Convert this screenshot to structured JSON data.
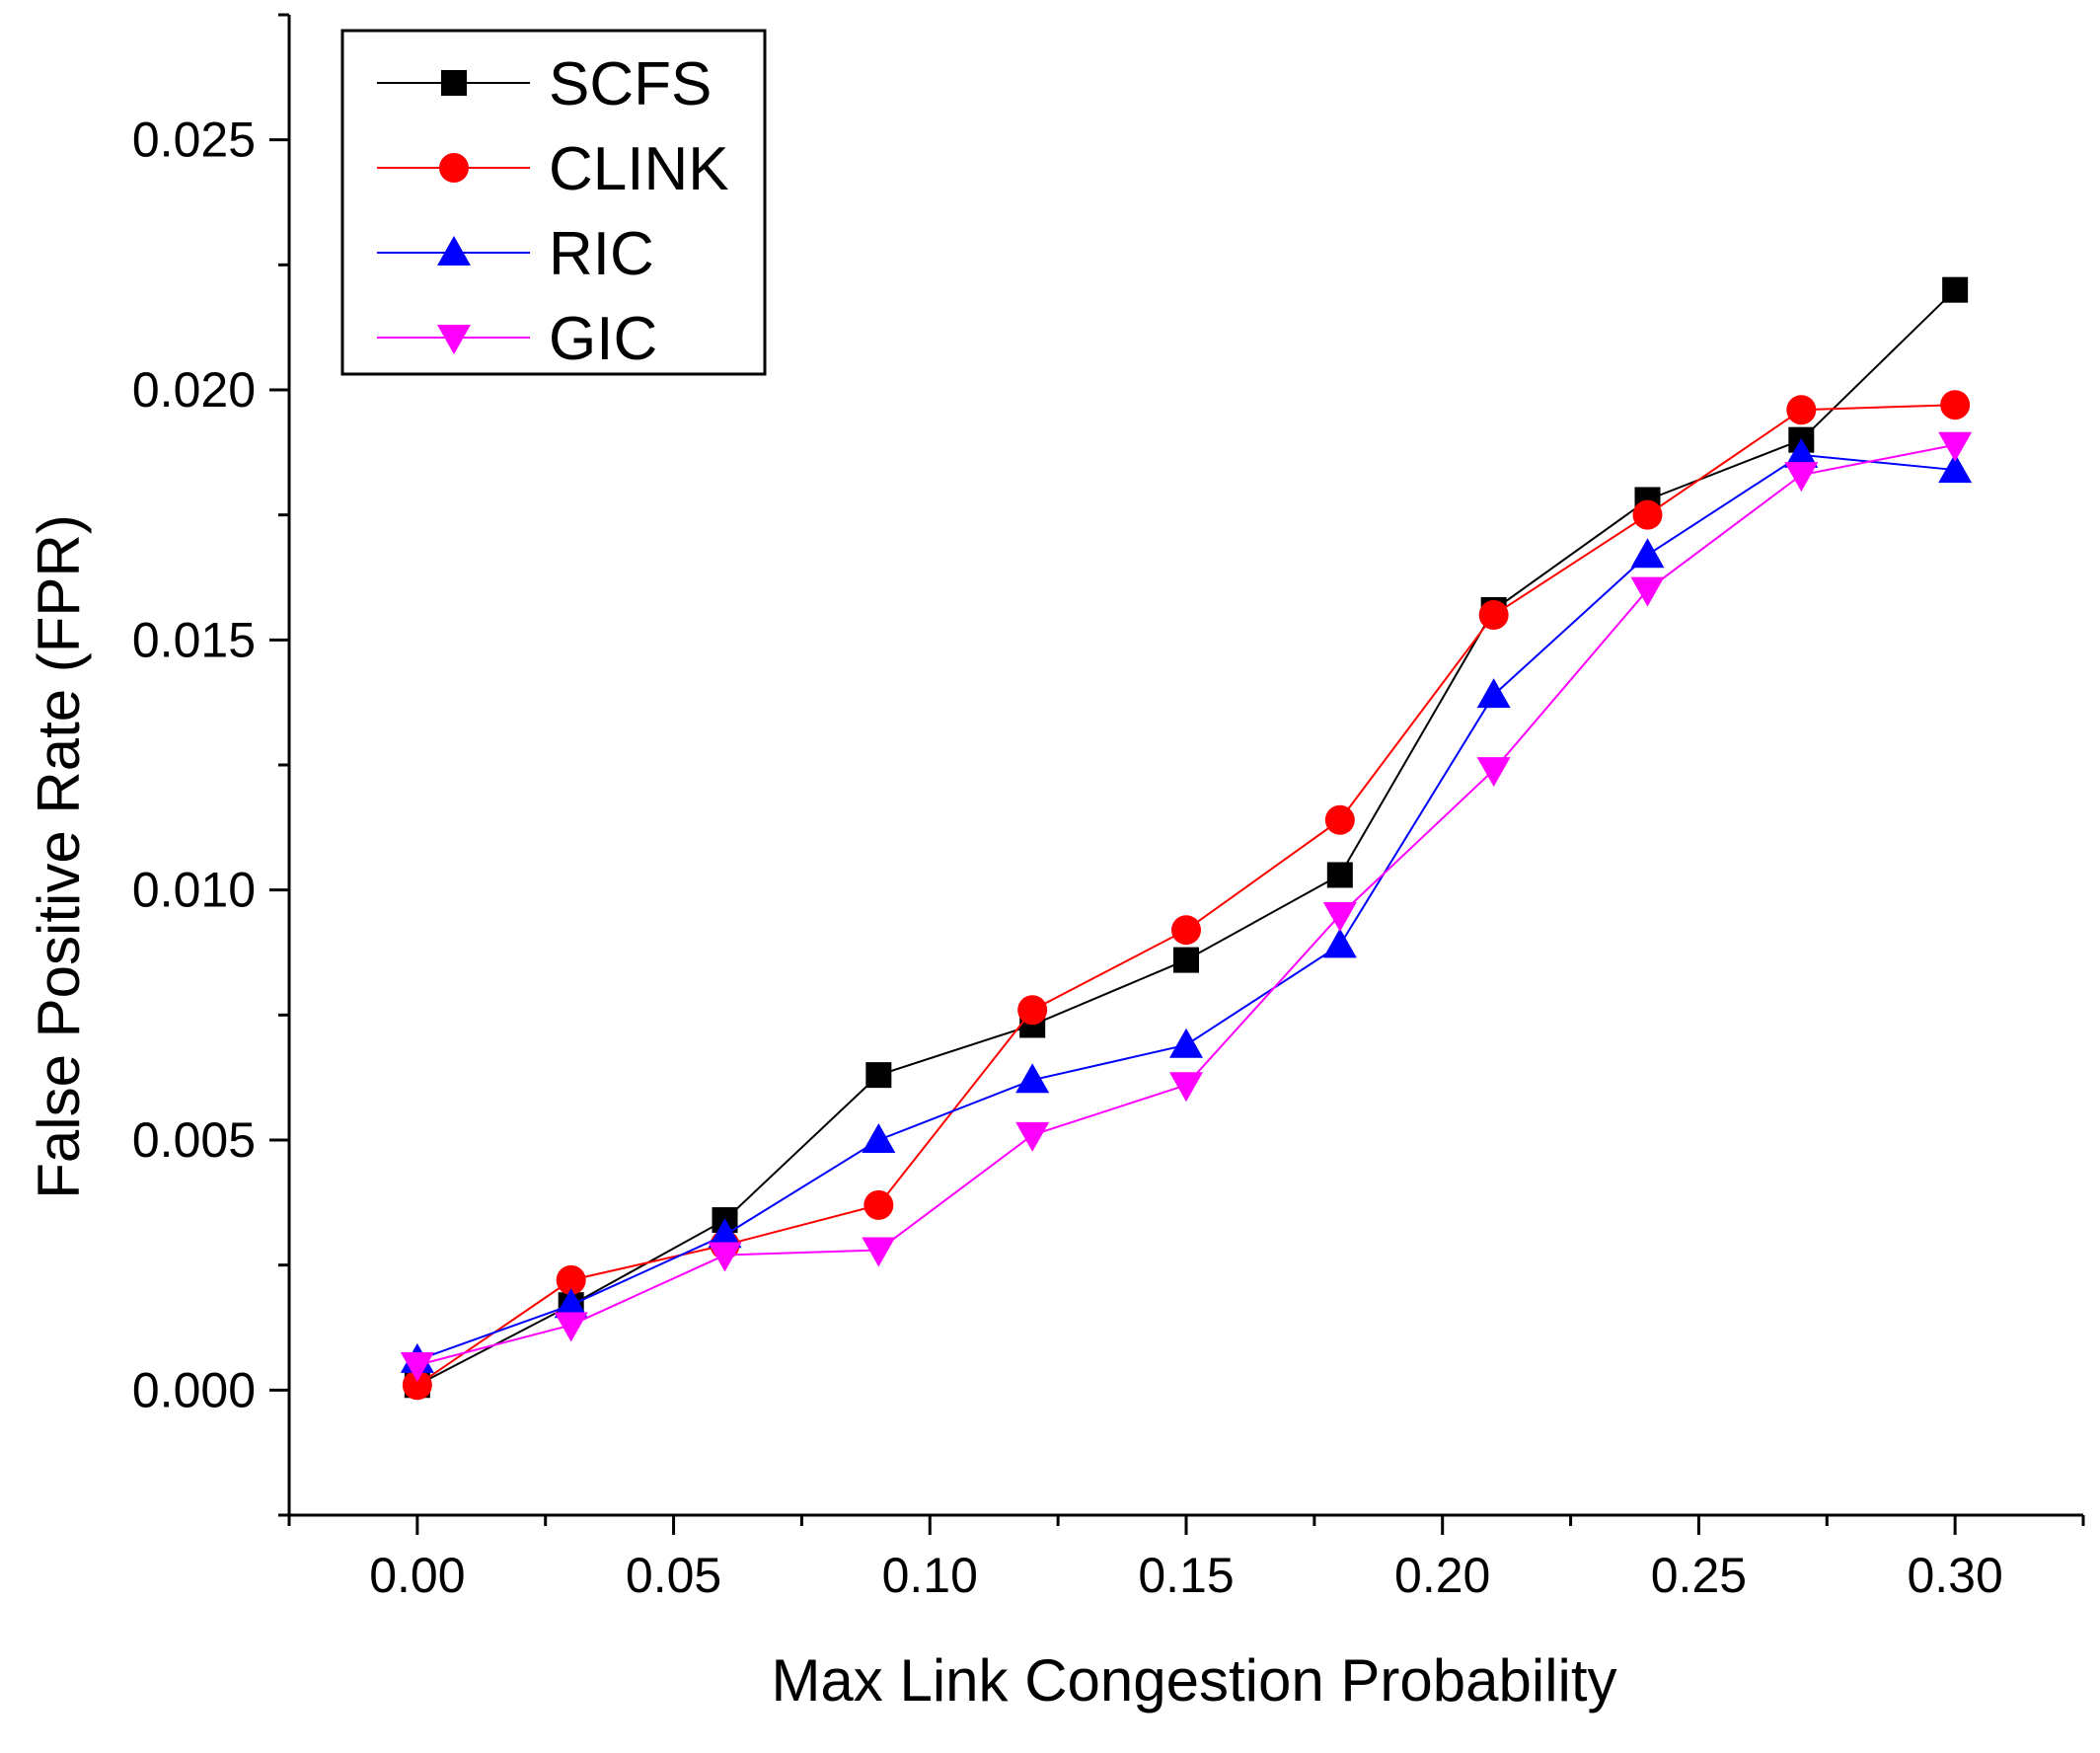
{
  "chart_data": {
    "type": "line",
    "title": "",
    "xlabel": "Max Link Congestion Probability",
    "ylabel": "False Positive Rate (FPR)",
    "xlim": [
      -0.025,
      0.325
    ],
    "ylim": [
      -0.0025,
      0.0275
    ],
    "x_ticks": [
      0.0,
      0.05,
      0.1,
      0.15,
      0.2,
      0.25,
      0.3
    ],
    "x_tick_labels": [
      "0.00",
      "0.05",
      "0.10",
      "0.15",
      "0.20",
      "0.25",
      "0.30"
    ],
    "y_ticks": [
      0.0,
      0.005,
      0.01,
      0.015,
      0.02,
      0.025
    ],
    "y_tick_labels": [
      "0.000",
      "0.005",
      "0.010",
      "0.015",
      "0.020",
      "0.025"
    ],
    "x": [
      0.0,
      0.03,
      0.06,
      0.09,
      0.12,
      0.15,
      0.18,
      0.21,
      0.24,
      0.27,
      0.3
    ],
    "grid": false,
    "legend_position": "top-left",
    "series": [
      {
        "name": "SCFS",
        "color": "#000000",
        "marker": "square",
        "values": [
          0.0001,
          0.0017,
          0.0034,
          0.0063,
          0.0073,
          0.0086,
          0.0103,
          0.0156,
          0.0178,
          0.019,
          0.022
        ]
      },
      {
        "name": "CLINK",
        "color": "#ff0000",
        "marker": "circle",
        "values": [
          0.0001,
          0.0022,
          0.0029,
          0.0037,
          0.0076,
          0.0092,
          0.0114,
          0.0155,
          0.0175,
          0.0196,
          0.0197
        ]
      },
      {
        "name": "RIC",
        "color": "#0000ff",
        "marker": "triangle-up",
        "values": [
          0.0006,
          0.0017,
          0.0031,
          0.005,
          0.0062,
          0.0069,
          0.0089,
          0.0139,
          0.0167,
          0.0187,
          0.0184
        ]
      },
      {
        "name": "GIC",
        "color": "#ff00ff",
        "marker": "triangle-down",
        "values": [
          0.0005,
          0.0013,
          0.0027,
          0.0028,
          0.0051,
          0.0061,
          0.0095,
          0.0124,
          0.016,
          0.0183,
          0.0189
        ]
      }
    ]
  }
}
